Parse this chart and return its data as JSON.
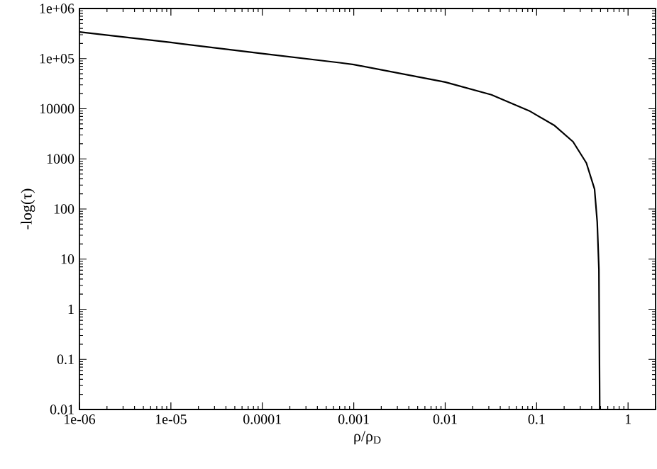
{
  "chart_data": {
    "type": "line",
    "xlabel": "ρ/ρ$_{D}$",
    "ylabel": "-log(τ)",
    "log": "xy",
    "xlim": [
      1e-06,
      2
    ],
    "ylim": [
      0.01,
      1000000
    ],
    "xticks": [
      {
        "value": 1e-06,
        "label": "1e-06"
      },
      {
        "value": 1e-05,
        "label": "1e-05"
      },
      0.0001,
      0.001,
      0.01,
      0.1,
      1
    ],
    "yticks": [
      0.01,
      0.1,
      1,
      10,
      100,
      1000,
      10000,
      {
        "value": 100000,
        "label": "1e+05"
      },
      {
        "value": 1000000,
        "label": "1e+06"
      }
    ],
    "marker": "none",
    "line_style": "solid",
    "series": [
      {
        "color": "#000000",
        "x": [
          1e-06,
          1e-05,
          0.0001,
          0.0007,
          0.001,
          0.01,
          0.032,
          0.083,
          0.155,
          0.25,
          0.35,
          0.43,
          0.46,
          0.48,
          0.49
        ],
        "values": [
          340000,
          210000,
          126000,
          83000,
          76000,
          34000,
          19000,
          9100,
          4700,
          2200,
          830,
          250,
          55,
          6.3,
          0.01
        ]
      }
    ]
  }
}
